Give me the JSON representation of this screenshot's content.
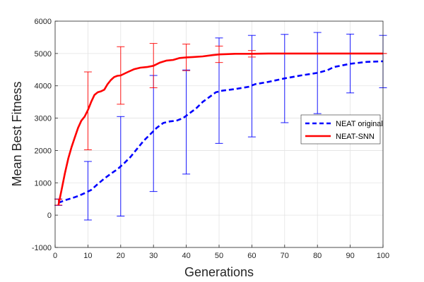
{
  "chart_data": {
    "type": "line",
    "title": "",
    "xlabel": "Generations",
    "ylabel": "Mean Best Fitness",
    "xlim": [
      0,
      100
    ],
    "ylim": [
      -1000,
      6000
    ],
    "xticks": [
      0,
      10,
      20,
      30,
      40,
      50,
      60,
      70,
      80,
      90,
      100
    ],
    "yticks": [
      -1000,
      0,
      1000,
      2000,
      3000,
      4000,
      5000,
      6000
    ],
    "grid": true,
    "legend_position": "right",
    "series": [
      {
        "name": "NEAT original",
        "color": "#0000ff",
        "line_style": "dashed",
        "x": [
          1,
          3,
          5,
          7,
          9,
          11,
          13,
          15,
          17,
          19,
          21,
          23,
          25,
          27,
          29,
          31,
          33,
          35,
          37,
          39,
          41,
          43,
          45,
          47,
          49,
          51,
          55,
          59,
          61,
          65,
          70,
          75,
          80,
          83,
          85,
          90,
          95,
          100
        ],
        "y": [
          380,
          460,
          520,
          590,
          680,
          780,
          960,
          1130,
          1280,
          1420,
          1600,
          1800,
          2050,
          2300,
          2500,
          2700,
          2850,
          2900,
          2920,
          3000,
          3150,
          3300,
          3500,
          3650,
          3800,
          3850,
          3900,
          3970,
          4050,
          4120,
          4230,
          4320,
          4400,
          4480,
          4580,
          4680,
          4740,
          4760
        ],
        "errorbars": [
          {
            "x": 1,
            "y": 380,
            "low": 300,
            "high": 500
          },
          {
            "x": 10,
            "y": 740,
            "low": -150,
            "high": 1660
          },
          {
            "x": 20,
            "y": 1500,
            "low": -30,
            "high": 3050
          },
          {
            "x": 30,
            "y": 2550,
            "low": 730,
            "high": 4320
          },
          {
            "x": 40,
            "y": 2980,
            "low": 1270,
            "high": 4490
          },
          {
            "x": 50,
            "y": 3830,
            "low": 2220,
            "high": 5480
          },
          {
            "x": 60,
            "y": 3990,
            "low": 2420,
            "high": 5560
          },
          {
            "x": 70,
            "y": 4230,
            "low": 2860,
            "high": 5590
          },
          {
            "x": 80,
            "y": 4400,
            "low": 3140,
            "high": 5650
          },
          {
            "x": 90,
            "y": 4680,
            "low": 3780,
            "high": 5600
          },
          {
            "x": 100,
            "y": 4760,
            "low": 3940,
            "high": 5560
          }
        ]
      },
      {
        "name": "NEAT-SNN",
        "color": "#ff0000",
        "line_style": "solid",
        "x": [
          1,
          2,
          3,
          4,
          5,
          6,
          7,
          8,
          9,
          10,
          11,
          12,
          13,
          14,
          15,
          16,
          17,
          18,
          19,
          20,
          22,
          24,
          26,
          28,
          30,
          32,
          34,
          36,
          38,
          40,
          42,
          45,
          48,
          50,
          55,
          60,
          65,
          70,
          80,
          90,
          100
        ],
        "y": [
          300,
          800,
          1300,
          1750,
          2100,
          2400,
          2700,
          2920,
          3050,
          3250,
          3500,
          3720,
          3800,
          3830,
          3880,
          4050,
          4180,
          4270,
          4310,
          4320,
          4420,
          4510,
          4560,
          4580,
          4620,
          4720,
          4780,
          4800,
          4860,
          4880,
          4890,
          4910,
          4950,
          4970,
          4990,
          4990,
          5000,
          5000,
          5000,
          5000,
          5000
        ],
        "errorbars": [
          {
            "x": 1,
            "y": 300,
            "low": 310,
            "high": 490
          },
          {
            "x": 10,
            "y": 3250,
            "low": 2020,
            "high": 4430
          },
          {
            "x": 20,
            "y": 4320,
            "low": 3430,
            "high": 5210
          },
          {
            "x": 30,
            "y": 4620,
            "low": 3940,
            "high": 5310
          },
          {
            "x": 40,
            "y": 4880,
            "low": 4470,
            "high": 5290
          },
          {
            "x": 50,
            "y": 4970,
            "low": 4720,
            "high": 5230
          },
          {
            "x": 60,
            "y": 4990,
            "low": 4890,
            "high": 5090
          },
          {
            "x": 70,
            "y": 5000,
            "low": 5000,
            "high": 5000
          },
          {
            "x": 80,
            "y": 5000,
            "low": 5000,
            "high": 5000
          },
          {
            "x": 90,
            "y": 5000,
            "low": 5000,
            "high": 5000
          },
          {
            "x": 100,
            "y": 5000,
            "low": 5000,
            "high": 5000
          }
        ]
      }
    ]
  }
}
